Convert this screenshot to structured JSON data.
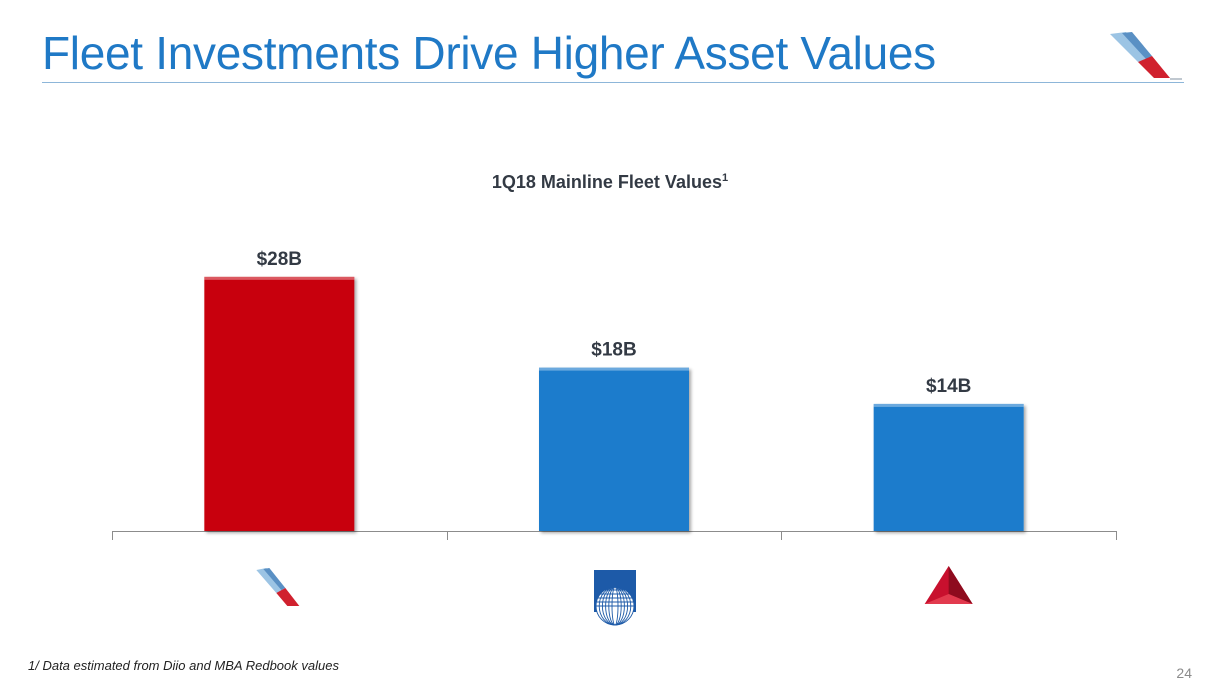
{
  "slide": {
    "title": "Fleet Investments Drive Higher Asset Values",
    "footnote": "1/ Data estimated from Diio and MBA Redbook values",
    "page_number": "24"
  },
  "colors": {
    "title": "#1f79c6",
    "aa_red": "#c8000f",
    "bar_blue": "#1d7ccc"
  },
  "chart_data": {
    "type": "bar",
    "title": "1Q18 Mainline Fleet Values",
    "title_superscript": "1",
    "categories": [
      "american-airlines",
      "united-airlines",
      "delta-air-lines"
    ],
    "category_icons": [
      "american-airlines-logo-icon",
      "united-globe-logo-icon",
      "delta-widget-logo-icon"
    ],
    "values": [
      28,
      18,
      14
    ],
    "data_labels": [
      "$28B",
      "$18B",
      "$14B"
    ],
    "units": "$B",
    "bar_colors": [
      "#c8000f",
      "#1d7ccc",
      "#1d7ccc"
    ],
    "ylim": [
      0,
      32.5
    ],
    "xlabel": "",
    "ylabel": "",
    "grid": false
  }
}
